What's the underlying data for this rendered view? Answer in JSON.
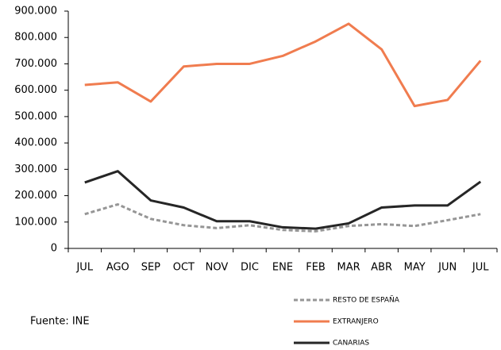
{
  "chart_data": {
    "type": "line",
    "categories": [
      "JUL",
      "AGO",
      "SEP",
      "OCT",
      "NOV",
      "DIC",
      "ENE",
      "FEB",
      "MAR",
      "ABR",
      "MAY",
      "JUN",
      "JUL"
    ],
    "series": [
      {
        "name": "RESTO DE ESPAÑA",
        "color": "#969696",
        "dashed": true,
        "values": [
          130000,
          167000,
          112000,
          88000,
          77000,
          88000,
          70000,
          65000,
          85000,
          92000,
          85000,
          107000,
          130000
        ]
      },
      {
        "name": "EXTRANJERO",
        "color": "#f07c4f",
        "dashed": false,
        "values": [
          620000,
          630000,
          557000,
          690000,
          700000,
          700000,
          730000,
          785000,
          852000,
          755000,
          540000,
          563000,
          712000
        ]
      },
      {
        "name": "CANARIAS",
        "color": "#262626",
        "dashed": false,
        "values": [
          250000,
          293000,
          182000,
          155000,
          103000,
          103000,
          80000,
          75000,
          95000,
          155000,
          163000,
          163000,
          253000
        ]
      }
    ],
    "ylim": [
      0,
      900000
    ],
    "yticks": [
      0,
      {
        "value": 100000,
        "label": "100.000"
      },
      {
        "value": 200000,
        "label": "200.000"
      },
      {
        "value": 300000,
        "label": "300.000"
      },
      {
        "value": 400000,
        "label": "400.000"
      },
      {
        "value": 500000,
        "label": "500.000"
      },
      {
        "value": 600000,
        "label": "600.000"
      },
      {
        "value": 700000,
        "label": "700.000"
      },
      {
        "value": 800000,
        "label": "800.000"
      },
      {
        "value": 900000,
        "label": "900.000"
      }
    ],
    "annotation": "Fuente: INE",
    "grid": false
  }
}
